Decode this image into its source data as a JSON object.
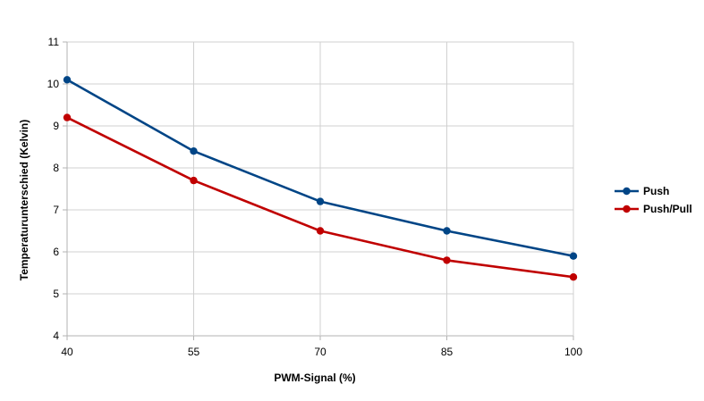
{
  "chart_data": {
    "type": "line",
    "x": [
      40,
      55,
      70,
      85,
      100
    ],
    "xlabel": "PWM-Signal (%)",
    "ylabel": "Temperaturunterschied (Kelvin)",
    "xlim": [
      40,
      100
    ],
    "ylim": [
      4,
      11
    ],
    "x_ticks": [
      "40",
      "55",
      "70",
      "85",
      "100"
    ],
    "y_ticks": [
      "4",
      "5",
      "6",
      "7",
      "8",
      "9",
      "10",
      "11"
    ],
    "grid": true,
    "legend_position": "right",
    "series": [
      {
        "name": "Push",
        "color": "#004586",
        "values": [
          10.1,
          8.4,
          7.2,
          6.5,
          5.9
        ]
      },
      {
        "name": "Push/Pull",
        "color": "#c00000",
        "values": [
          9.2,
          7.7,
          6.5,
          5.8,
          5.4
        ]
      }
    ]
  }
}
